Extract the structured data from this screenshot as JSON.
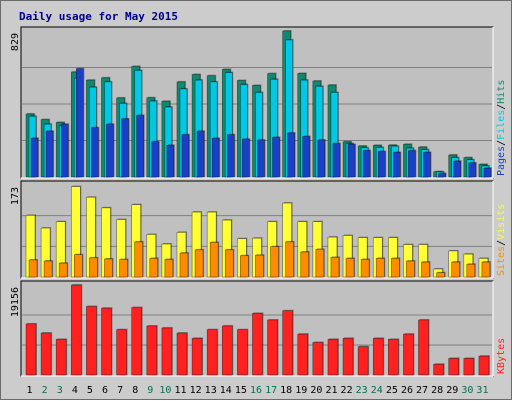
{
  "chart_data": {
    "type": "bar",
    "title": "Daily usage for May 2015",
    "days": [
      "1",
      "2",
      "3",
      "4",
      "5",
      "6",
      "7",
      "8",
      "9",
      "10",
      "11",
      "12",
      "13",
      "14",
      "15",
      "16",
      "17",
      "18",
      "19",
      "20",
      "21",
      "22",
      "23",
      "24",
      "25",
      "26",
      "27",
      "28",
      "29",
      "30",
      "31"
    ],
    "weekend_days": [
      "2",
      "3",
      "9",
      "10",
      "16",
      "17",
      "23",
      "24",
      "30",
      "31"
    ],
    "colors": {
      "hits": "#0e8a70",
      "files": "#00c8e6",
      "pages": "#1a40c8",
      "visits": "#ffff33",
      "sites": "#ff8c00",
      "kbytes": "#ff2020",
      "title": "#00008b",
      "weekday_label": "#000000",
      "weekend_label": "#007050",
      "background": "#cccccc",
      "panel": "#c0c0c0",
      "gridline": "#808080"
    },
    "panels": [
      {
        "id": "usage",
        "axis_max_label": "829",
        "ylim": [
          0,
          829
        ],
        "legend": [
          {
            "text": "Hits",
            "color": "#0e8a70"
          },
          {
            "text": "/",
            "color": "#000000"
          },
          {
            "text": "Files",
            "color": "#00c8e6"
          },
          {
            "text": "/",
            "color": "#000000"
          },
          {
            "text": "Pages",
            "color": "#1a40c8"
          }
        ],
        "series": [
          {
            "name": "Hits",
            "key": "hits",
            "values": [
              358,
              326,
              310,
              596,
              550,
              563,
              449,
              628,
              450,
              430,
              540,
              582,
              575,
              611,
              548,
              520,
              587,
              829,
              588,
              545,
              522,
              200,
              176,
              180,
              181,
              186,
              170,
              30,
              125,
              110,
              72
            ]
          },
          {
            "name": "Files",
            "key": "files",
            "values": [
              345,
              300,
              290,
              560,
              510,
              540,
              418,
              605,
              431,
              397,
              500,
              550,
              540,
              593,
              525,
              480,
              555,
              778,
              550,
              515,
              480,
              190,
              166,
              168,
              175,
              164,
              155,
              29,
              110,
              98,
              63
            ]
          },
          {
            "name": "Pages",
            "key": "pages",
            "values": [
              220,
              260,
              300,
              615,
              280,
              300,
              330,
              350,
              200,
              180,
              240,
              260,
              220,
              240,
              215,
              210,
              225,
              250,
              230,
              210,
              190,
              185,
              150,
              145,
              140,
              150,
              140,
              20,
              90,
              80,
              50
            ]
          }
        ]
      },
      {
        "id": "visits",
        "axis_max_label": "173",
        "ylim": [
          0,
          173
        ],
        "legend": [
          {
            "text": "Visits",
            "color": "#ffff33"
          },
          {
            "text": "/",
            "color": "#000000"
          },
          {
            "text": "Sites",
            "color": "#ff8c00"
          }
        ],
        "series": [
          {
            "name": "Visits",
            "key": "visits",
            "values": [
              116,
              92,
              104,
              170,
              150,
              130,
              108,
              136,
              80,
              62,
              84,
              122,
              122,
              107,
              72,
              73,
              104,
              139,
              104,
              104,
              75,
              78,
              74,
              74,
              74,
              61,
              61,
              15,
              49,
              43,
              35
            ]
          },
          {
            "name": "Sites",
            "key": "sites",
            "values": [
              32,
              30,
              26,
              42,
              36,
              34,
              33,
              66,
              35,
              33,
              45,
              51,
              65,
              51,
              40,
              41,
              57,
              66,
              47,
              52,
              37,
              35,
              33,
              35,
              35,
              30,
              28,
              8,
              28,
              24,
              28
            ]
          }
        ]
      },
      {
        "id": "kbytes",
        "axis_max_label": "19156",
        "ylim": [
          0,
          19156
        ],
        "legend": [
          {
            "text": "KBytes",
            "color": "#ff2020"
          }
        ],
        "series": [
          {
            "name": "KBytes",
            "key": "kbytes",
            "values": [
              10871,
              8932,
              7586,
              19156,
              14586,
              14227,
              9651,
              14359,
              10432,
              10014,
              8932,
              7807,
              9651,
              10432,
              9651,
              13125,
              11712,
              13674,
              8705,
              6927,
              7586,
              7807,
              6024,
              7807,
              7586,
              8705,
              11712,
              2292,
              3540,
              3540,
              4020
            ]
          }
        ]
      }
    ]
  }
}
